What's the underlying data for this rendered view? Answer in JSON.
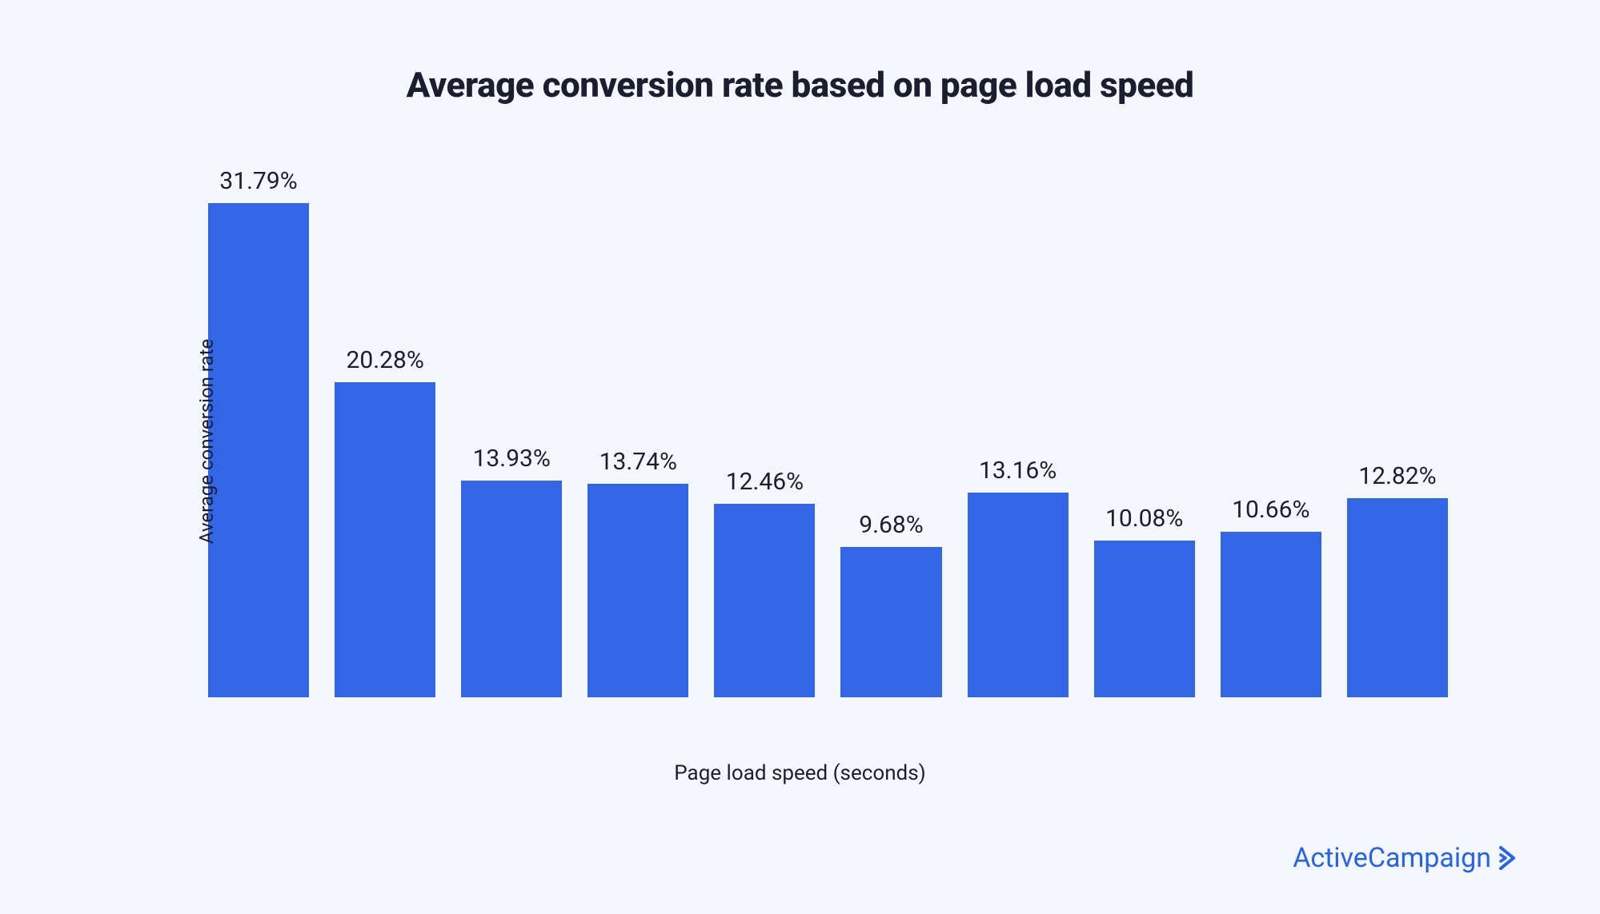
{
  "chart": {
    "type": "bar",
    "title": "Average conversion rate based on page load speed",
    "title_fontsize": 44,
    "title_color": "#1a1e2e",
    "title_weight": 800,
    "y_axis_label": "Average conversion rate",
    "x_axis_label": "Page load speed (seconds)",
    "axis_label_fontsize": 25,
    "axis_label_color": "#1a1e2e",
    "value_label_fontsize": 30,
    "value_label_color": "#1a1e2e",
    "background_color": "#f5f7ff",
    "bar_color": "#3366e6",
    "bar_width_ratio": 0.8,
    "y_max": 35,
    "y_min": 0,
    "data": [
      {
        "label": "31.79%",
        "value": 31.79
      },
      {
        "label": "20.28%",
        "value": 20.28
      },
      {
        "label": "13.93%",
        "value": 13.93
      },
      {
        "label": "13.74%",
        "value": 13.74
      },
      {
        "label": "12.46%",
        "value": 12.46
      },
      {
        "label": "9.68%",
        "value": 9.68
      },
      {
        "label": "13.16%",
        "value": 13.16
      },
      {
        "label": "10.08%",
        "value": 10.08
      },
      {
        "label": "10.66%",
        "value": 10.66
      },
      {
        "label": "12.82%",
        "value": 12.82
      }
    ]
  },
  "brand": {
    "name": "ActiveCampaign",
    "color": "#2563eb",
    "fontsize": 34
  }
}
